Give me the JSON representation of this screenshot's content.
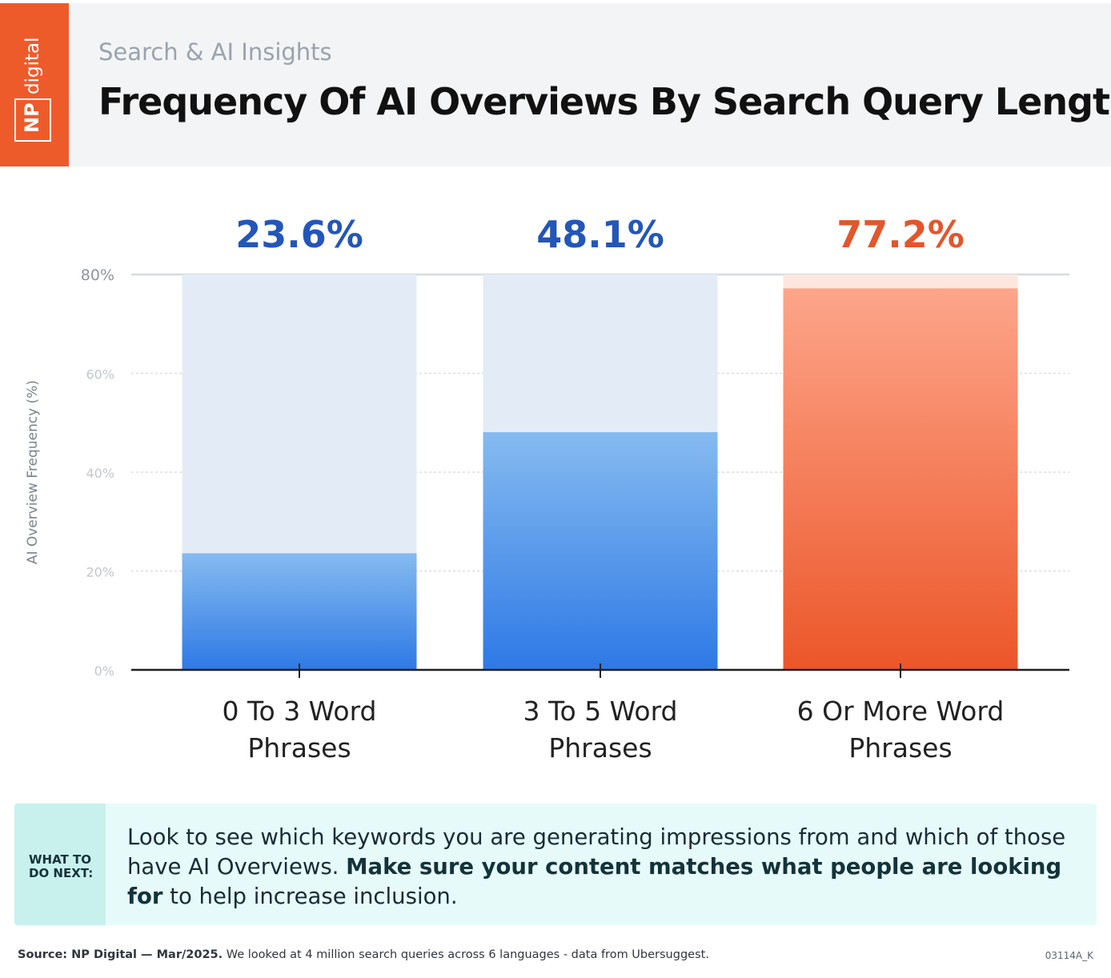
{
  "header": {
    "logo_text": "NP digital",
    "subtitle": "Search & AI Insights",
    "title": "Frequency Of AI Overviews By Search Query Length"
  },
  "colors": {
    "brand_orange": "#ee5b2b",
    "blue_bar": "#2f7ae5",
    "blue_label": "#2356b8",
    "orange_label": "#e2562c",
    "track": "#e3ecf6"
  },
  "chart_data": {
    "type": "bar",
    "categories": [
      [
        "0 To 3 Word",
        "Phrases"
      ],
      [
        "3 To 5 Word",
        "Phrases"
      ],
      [
        "6 Or More Word",
        "Phrases"
      ]
    ],
    "values": [
      23.6,
      48.1,
      77.2
    ],
    "value_labels": [
      "23.6%",
      "48.1%",
      "77.2%"
    ],
    "highlight_index": 2,
    "ylabel": "AI Overview Frequency (%)",
    "yticks": [
      "0%",
      "20%",
      "40%",
      "60%",
      "80%"
    ],
    "ylim": [
      0,
      80
    ],
    "grid": true
  },
  "callout": {
    "tag": "WHAT TO DO NEXT:",
    "text_before": "Look to see which keywords you are generating impressions from and which of those have AI Overviews.",
    "text_bold": "Make sure your content matches what people are looking for",
    "text_after": "to help increase inclusion."
  },
  "footer": {
    "source_bold": "Source: NP Digital — Mar/2025.",
    "source_rest": "We looked at 4 million search queries across 6 languages - data from Ubersuggest.",
    "code": "03114A_K"
  }
}
